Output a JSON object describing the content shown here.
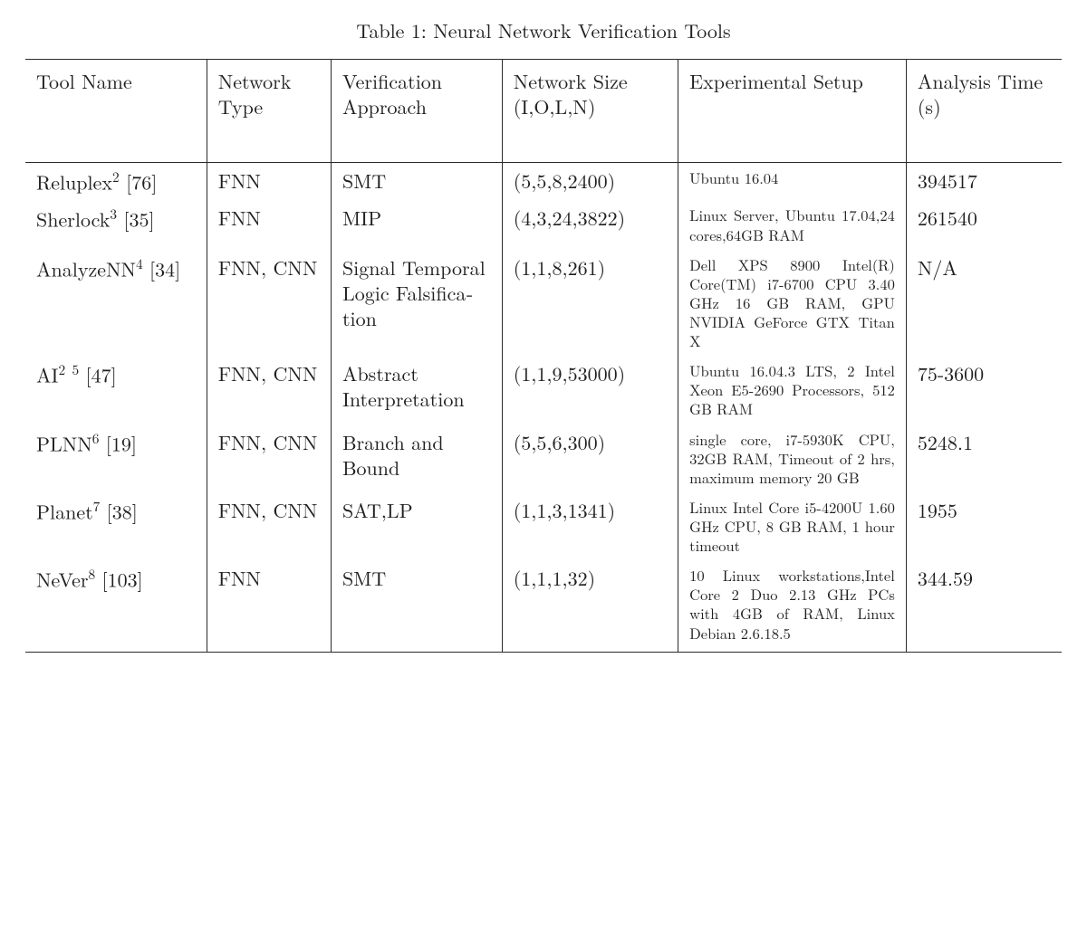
{
  "caption": "Table 1: Neural Network Verification Tools",
  "table": {
    "type": "table",
    "columns": [
      "Tool Name",
      "Network Type",
      "Verification Approach",
      "Network Size (I,O,L,N)",
      "Experimental Setup",
      "Analysis Time (s)"
    ],
    "column_widths_pct": [
      17.5,
      12,
      16.5,
      17,
      22,
      15
    ],
    "column_alignments": [
      "left",
      "left",
      "left",
      "left",
      "justify",
      "left"
    ],
    "header_fontsize_pt": 16,
    "body_fontsize_pt": 16,
    "setup_fontsize_pt": 12,
    "border_color": "#2a2a2a",
    "background_color": "#ffffff",
    "text_color": "#1f1f22",
    "vertical_rules": true,
    "top_rule": true,
    "header_rule": true,
    "bottom_rule": true,
    "rows": [
      {
        "tool_html": "Reluplex<sup>2</sup> [76]",
        "network_type": "FNN",
        "approach": "SMT",
        "size": "(5,5,8,2400)",
        "setup": "Ubuntu 16.04",
        "time": "394517"
      },
      {
        "tool_html": "Sherlock<sup>3</sup> [35]",
        "network_type": "FNN",
        "approach": "MIP",
        "size": "(4,3,24,3822)",
        "setup": "Linux Server, Ubuntu 17.04,24 cores,64GB RAM",
        "time": "261540"
      },
      {
        "tool_html": "AnalyzeNN<sup>4</sup> [34]",
        "network_type": "FNN, CNN",
        "approach": "Signal Tem­poral Logic Falsifica­tion",
        "size": "(1,1,8,261)",
        "setup": "Dell XPS 8900 Intel(R) Core(TM) i7-6700 CPU 3.40 GHz 16 GB RAM, GPU NVIDIA GeForce GTX Titan X",
        "time": "N/A"
      },
      {
        "tool_html": "AI<sup>2</sup> <sup>5</sup> [47]",
        "network_type": "FNN, CNN",
        "approach": "Abstract Interpreta­tion",
        "size": "(1,1,9,53000)",
        "setup": "Ubuntu 16.04.3 LTS, 2 Intel Xeon E5-2690 Processors, 512 GB RAM",
        "time": "75-3600"
      },
      {
        "tool_html": "PLNN<sup>6</sup> [19]",
        "network_type": "FNN, CNN",
        "approach": "Branch and Bound",
        "size": "(5,5,6,300)",
        "setup": "single core, i7-5930K CPU, 32GB RAM, Timeout of 2 hrs, maximum memory 20 GB",
        "time": "5248.1"
      },
      {
        "tool_html": "Planet<sup>7</sup> [38]",
        "network_type": "FNN, CNN",
        "approach": "SAT,LP",
        "size": "(1,1,3,1341)",
        "setup": "Linux Intel Core i5-4200U 1.60 GHz CPU, 8 GB RAM, 1 hour timeout",
        "time": "1955"
      },
      {
        "tool_html": "NeVer<sup>8</sup> [103]",
        "network_type": "FNN",
        "approach": "SMT",
        "size": "(1,1,1,32)",
        "setup": "10 Linux worksta­tions,Intel Core 2 Duo 2.13 GHz PCs with 4GB of RAM, Linux Debian 2.6.18.5",
        "time": "344.59"
      }
    ]
  }
}
